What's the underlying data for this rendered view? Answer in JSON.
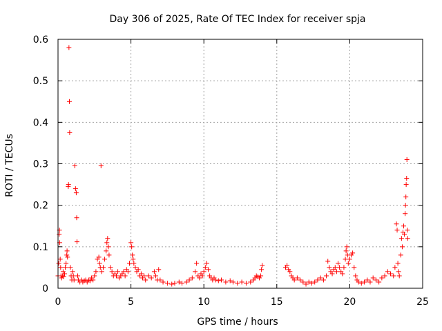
{
  "chart_data": {
    "type": "scatter",
    "title": "Day 306 of 2025, Rate Of TEC Index for receiver spja",
    "xlabel": "GPS time / hours",
    "ylabel": "ROTI / TECUs",
    "xlim": [
      0,
      25
    ],
    "ylim": [
      0,
      0.6
    ],
    "xticks": [
      0,
      5,
      10,
      15,
      20,
      25
    ],
    "xtick_labels": [
      "0",
      "5",
      "10",
      "15",
      "20",
      "25"
    ],
    "yticks": [
      0,
      0.1,
      0.2,
      0.3,
      0.4,
      0.5,
      0.6
    ],
    "ytick_labels": [
      "0",
      "0.1",
      "0.2",
      "0.3",
      "0.4",
      "0.5",
      "0.6"
    ],
    "grid": true,
    "marker": "plus",
    "color": "#ff0000",
    "series": [
      {
        "name": "ROTI",
        "points": [
          [
            0.0,
            0.03
          ],
          [
            0.05,
            0.06
          ],
          [
            0.08,
            0.13
          ],
          [
            0.1,
            0.14
          ],
          [
            0.12,
            0.11
          ],
          [
            0.15,
            0.07
          ],
          [
            0.18,
            0.05
          ],
          [
            0.2,
            0.03
          ],
          [
            0.25,
            0.025
          ],
          [
            0.3,
            0.03
          ],
          [
            0.35,
            0.04
          ],
          [
            0.4,
            0.028
          ],
          [
            0.45,
            0.035
          ],
          [
            0.5,
            0.05
          ],
          [
            0.55,
            0.06
          ],
          [
            0.6,
            0.08
          ],
          [
            0.62,
            0.09
          ],
          [
            0.65,
            0.075
          ],
          [
            0.7,
            0.245
          ],
          [
            0.72,
            0.25
          ],
          [
            0.75,
            0.58
          ],
          [
            0.78,
            0.45
          ],
          [
            0.8,
            0.375
          ],
          [
            0.85,
            0.05
          ],
          [
            0.9,
            0.03
          ],
          [
            0.95,
            0.02
          ],
          [
            1.0,
            0.04
          ],
          [
            1.05,
            0.03
          ],
          [
            1.1,
            0.02
          ],
          [
            1.15,
            0.295
          ],
          [
            1.2,
            0.24
          ],
          [
            1.25,
            0.23
          ],
          [
            1.28,
            0.17
          ],
          [
            1.3,
            0.112
          ],
          [
            1.35,
            0.03
          ],
          [
            1.4,
            0.02
          ],
          [
            1.5,
            0.015
          ],
          [
            1.6,
            0.02
          ],
          [
            1.7,
            0.015
          ],
          [
            1.8,
            0.018
          ],
          [
            1.9,
            0.02
          ],
          [
            2.0,
            0.015
          ],
          [
            2.1,
            0.02
          ],
          [
            2.2,
            0.018
          ],
          [
            2.3,
            0.025
          ],
          [
            2.4,
            0.02
          ],
          [
            2.5,
            0.03
          ],
          [
            2.6,
            0.04
          ],
          [
            2.7,
            0.07
          ],
          [
            2.8,
            0.075
          ],
          [
            2.85,
            0.06
          ],
          [
            2.9,
            0.05
          ],
          [
            2.95,
            0.295
          ],
          [
            3.0,
            0.04
          ],
          [
            3.1,
            0.05
          ],
          [
            3.2,
            0.07
          ],
          [
            3.3,
            0.09
          ],
          [
            3.35,
            0.11
          ],
          [
            3.4,
            0.12
          ],
          [
            3.45,
            0.1
          ],
          [
            3.5,
            0.08
          ],
          [
            3.6,
            0.05
          ],
          [
            3.7,
            0.04
          ],
          [
            3.8,
            0.03
          ],
          [
            3.9,
            0.035
          ],
          [
            4.0,
            0.03
          ],
          [
            4.1,
            0.04
          ],
          [
            4.2,
            0.025
          ],
          [
            4.3,
            0.03
          ],
          [
            4.4,
            0.035
          ],
          [
            4.5,
            0.04
          ],
          [
            4.6,
            0.03
          ],
          [
            4.7,
            0.045
          ],
          [
            4.8,
            0.04
          ],
          [
            4.9,
            0.06
          ],
          [
            5.0,
            0.11
          ],
          [
            5.05,
            0.1
          ],
          [
            5.1,
            0.08
          ],
          [
            5.15,
            0.07
          ],
          [
            5.2,
            0.06
          ],
          [
            5.3,
            0.05
          ],
          [
            5.4,
            0.04
          ],
          [
            5.5,
            0.045
          ],
          [
            5.6,
            0.03
          ],
          [
            5.7,
            0.035
          ],
          [
            5.8,
            0.025
          ],
          [
            5.9,
            0.03
          ],
          [
            6.0,
            0.02
          ],
          [
            6.2,
            0.03
          ],
          [
            6.4,
            0.025
          ],
          [
            6.6,
            0.04
          ],
          [
            6.7,
            0.03
          ],
          [
            6.8,
            0.02
          ],
          [
            6.9,
            0.045
          ],
          [
            7.0,
            0.02
          ],
          [
            7.2,
            0.015
          ],
          [
            7.5,
            0.012
          ],
          [
            7.8,
            0.01
          ],
          [
            8.0,
            0.012
          ],
          [
            8.3,
            0.015
          ],
          [
            8.5,
            0.012
          ],
          [
            8.8,
            0.015
          ],
          [
            9.0,
            0.02
          ],
          [
            9.2,
            0.025
          ],
          [
            9.4,
            0.04
          ],
          [
            9.5,
            0.06
          ],
          [
            9.6,
            0.03
          ],
          [
            9.7,
            0.025
          ],
          [
            9.8,
            0.035
          ],
          [
            9.9,
            0.03
          ],
          [
            10.0,
            0.04
          ],
          [
            10.1,
            0.05
          ],
          [
            10.2,
            0.06
          ],
          [
            10.3,
            0.045
          ],
          [
            10.4,
            0.03
          ],
          [
            10.5,
            0.025
          ],
          [
            10.6,
            0.02
          ],
          [
            10.7,
            0.025
          ],
          [
            10.8,
            0.02
          ],
          [
            11.0,
            0.018
          ],
          [
            11.2,
            0.02
          ],
          [
            11.5,
            0.015
          ],
          [
            11.8,
            0.018
          ],
          [
            12.0,
            0.015
          ],
          [
            12.3,
            0.012
          ],
          [
            12.6,
            0.015
          ],
          [
            12.9,
            0.012
          ],
          [
            13.2,
            0.015
          ],
          [
            13.4,
            0.02
          ],
          [
            13.5,
            0.025
          ],
          [
            13.6,
            0.03
          ],
          [
            13.7,
            0.028
          ],
          [
            13.8,
            0.025
          ],
          [
            13.9,
            0.03
          ],
          [
            13.95,
            0.045
          ],
          [
            14.0,
            0.055
          ],
          [
            15.6,
            0.05
          ],
          [
            15.7,
            0.055
          ],
          [
            15.8,
            0.045
          ],
          [
            15.9,
            0.04
          ],
          [
            16.0,
            0.03
          ],
          [
            16.1,
            0.025
          ],
          [
            16.2,
            0.02
          ],
          [
            16.4,
            0.025
          ],
          [
            16.6,
            0.02
          ],
          [
            16.8,
            0.015
          ],
          [
            17.0,
            0.01
          ],
          [
            17.2,
            0.015
          ],
          [
            17.4,
            0.012
          ],
          [
            17.6,
            0.015
          ],
          [
            17.8,
            0.02
          ],
          [
            18.0,
            0.025
          ],
          [
            18.2,
            0.02
          ],
          [
            18.4,
            0.03
          ],
          [
            18.5,
            0.065
          ],
          [
            18.6,
            0.05
          ],
          [
            18.7,
            0.04
          ],
          [
            18.8,
            0.035
          ],
          [
            18.9,
            0.045
          ],
          [
            19.0,
            0.05
          ],
          [
            19.1,
            0.04
          ],
          [
            19.2,
            0.06
          ],
          [
            19.3,
            0.05
          ],
          [
            19.4,
            0.04
          ],
          [
            19.5,
            0.035
          ],
          [
            19.6,
            0.05
          ],
          [
            19.7,
            0.07
          ],
          [
            19.75,
            0.09
          ],
          [
            19.8,
            0.1
          ],
          [
            19.85,
            0.08
          ],
          [
            19.9,
            0.06
          ],
          [
            20.0,
            0.07
          ],
          [
            20.1,
            0.08
          ],
          [
            20.2,
            0.085
          ],
          [
            20.3,
            0.05
          ],
          [
            20.4,
            0.03
          ],
          [
            20.5,
            0.02
          ],
          [
            20.6,
            0.015
          ],
          [
            20.8,
            0.012
          ],
          [
            21.0,
            0.015
          ],
          [
            21.2,
            0.02
          ],
          [
            21.4,
            0.015
          ],
          [
            21.6,
            0.025
          ],
          [
            21.8,
            0.02
          ],
          [
            22.0,
            0.015
          ],
          [
            22.2,
            0.025
          ],
          [
            22.4,
            0.03
          ],
          [
            22.6,
            0.04
          ],
          [
            22.8,
            0.035
          ],
          [
            23.0,
            0.03
          ],
          [
            23.1,
            0.05
          ],
          [
            23.2,
            0.155
          ],
          [
            23.25,
            0.14
          ],
          [
            23.3,
            0.06
          ],
          [
            23.35,
            0.04
          ],
          [
            23.4,
            0.03
          ],
          [
            23.5,
            0.08
          ],
          [
            23.55,
            0.12
          ],
          [
            23.6,
            0.1
          ],
          [
            23.65,
            0.135
          ],
          [
            23.7,
            0.15
          ],
          [
            23.75,
            0.13
          ],
          [
            23.8,
            0.18
          ],
          [
            23.82,
            0.2
          ],
          [
            23.85,
            0.22
          ],
          [
            23.87,
            0.25
          ],
          [
            23.9,
            0.265
          ],
          [
            23.92,
            0.31
          ],
          [
            23.95,
            0.14
          ],
          [
            23.97,
            0.12
          ]
        ]
      }
    ]
  }
}
